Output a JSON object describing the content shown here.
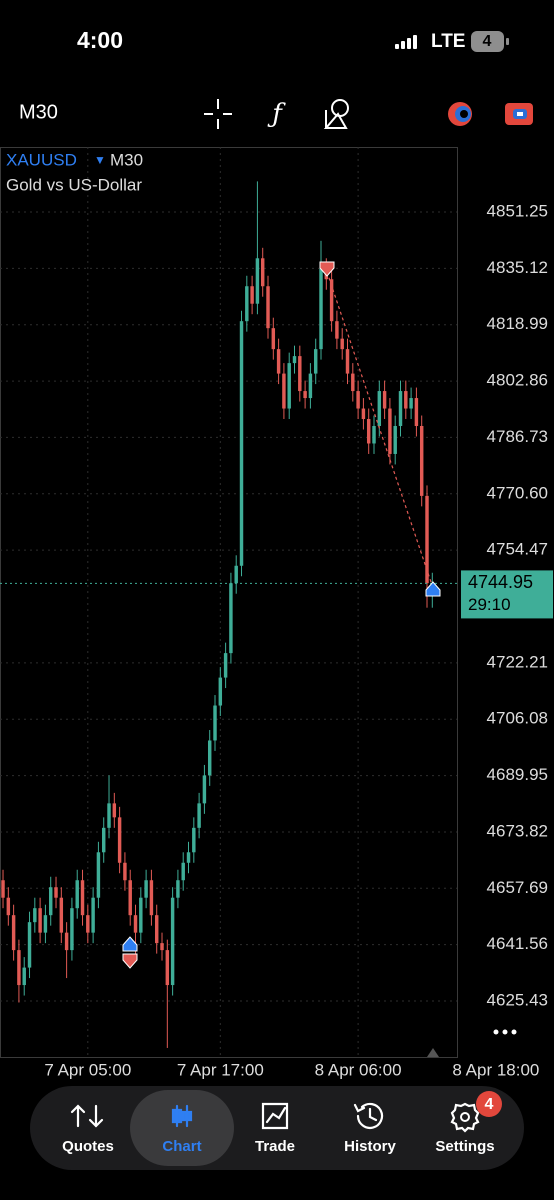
{
  "status_bar": {
    "time": "4:00",
    "network": "LTE",
    "battery": "4"
  },
  "toolbar": {
    "timeframe": "M30"
  },
  "symbol": {
    "name": "XAUUSD",
    "timeframe": "M30",
    "description": "Gold vs US-Dollar"
  },
  "price_box": {
    "timer": "29:10"
  },
  "chart_data": {
    "type": "candlestick",
    "categories": [
      null,
      null,
      null,
      null,
      null,
      null,
      null,
      null,
      null,
      null,
      null,
      null,
      null,
      null,
      null,
      null,
      null,
      null,
      null,
      null,
      null,
      null,
      null,
      null,
      null,
      null,
      null,
      null,
      null,
      null,
      null,
      null,
      null,
      null,
      null,
      null,
      null,
      null,
      null,
      null,
      null,
      null,
      null,
      null,
      null,
      null,
      null,
      null,
      null,
      null,
      null,
      null,
      null,
      null,
      null,
      null,
      null,
      null,
      null,
      null,
      null,
      null,
      null,
      null,
      null,
      null,
      null,
      null,
      null,
      null,
      null,
      null,
      null,
      null,
      null,
      null,
      null,
      null,
      null,
      null,
      null,
      null
    ],
    "open": [
      4660,
      4655,
      4650,
      4640,
      4630,
      4635,
      4648,
      4652,
      4645,
      4650,
      4658,
      4655,
      4645,
      4640,
      4652,
      4660,
      4650,
      4645,
      4655,
      4668,
      4675,
      4682,
      4678,
      4665,
      4660,
      4650,
      4645,
      4655,
      4660,
      4650,
      4642,
      4640,
      4630,
      4655,
      4660,
      4665,
      4668,
      4675,
      4682,
      4690,
      4700,
      4710,
      4718,
      4725,
      4745,
      4750,
      4820,
      4830,
      4825,
      4838,
      4830,
      4818,
      4812,
      4805,
      4795,
      4808,
      4810,
      4800,
      4798,
      4805,
      4812,
      4835,
      4832,
      4820,
      4815,
      4812,
      4805,
      4800,
      4795,
      4792,
      4785,
      4790,
      4800,
      4795,
      4782,
      4790,
      4800,
      4795,
      4798,
      4790,
      4770,
      4742
    ],
    "high": [
      4663,
      4658,
      4653,
      4643,
      4638,
      4651,
      4655,
      4655,
      4653,
      4661,
      4661,
      4658,
      4648,
      4655,
      4663,
      4663,
      4653,
      4658,
      4671,
      4678,
      4690,
      4685,
      4681,
      4668,
      4663,
      4653,
      4658,
      4663,
      4663,
      4653,
      4645,
      4643,
      4658,
      4663,
      4668,
      4671,
      4678,
      4685,
      4693,
      4703,
      4713,
      4721,
      4728,
      4748,
      4753,
      4823,
      4833,
      4833,
      4860,
      4841,
      4833,
      4821,
      4815,
      4808,
      4811,
      4813,
      4813,
      4803,
      4808,
      4815,
      4843,
      4838,
      4835,
      4823,
      4818,
      4815,
      4808,
      4803,
      4798,
      4795,
      4793,
      4803,
      4803,
      4798,
      4793,
      4803,
      4803,
      4801,
      4801,
      4793,
      4773,
      4748
    ],
    "low": [
      4652,
      4647,
      4637,
      4625,
      4627,
      4632,
      4645,
      4642,
      4642,
      4647,
      4652,
      4642,
      4632,
      4637,
      4649,
      4647,
      4642,
      4642,
      4652,
      4665,
      4672,
      4675,
      4662,
      4657,
      4647,
      4638,
      4642,
      4652,
      4647,
      4639,
      4637,
      4612,
      4627,
      4652,
      4657,
      4662,
      4665,
      4672,
      4679,
      4687,
      4697,
      4707,
      4715,
      4722,
      4742,
      4747,
      4817,
      4822,
      4822,
      4827,
      4815,
      4809,
      4802,
      4792,
      4792,
      4805,
      4797,
      4795,
      4795,
      4802,
      4809,
      4829,
      4817,
      4812,
      4809,
      4802,
      4797,
      4792,
      4789,
      4782,
      4782,
      4787,
      4792,
      4779,
      4779,
      4787,
      4792,
      4792,
      4787,
      4767,
      4738,
      4738
    ],
    "close": [
      4655,
      4650,
      4640,
      4630,
      4635,
      4648,
      4652,
      4645,
      4650,
      4658,
      4655,
      4645,
      4640,
      4652,
      4660,
      4650,
      4645,
      4655,
      4668,
      4675,
      4682,
      4678,
      4665,
      4660,
      4650,
      4645,
      4655,
      4660,
      4650,
      4642,
      4640,
      4630,
      4655,
      4660,
      4665,
      4668,
      4675,
      4682,
      4690,
      4700,
      4710,
      4718,
      4725,
      4745,
      4750,
      4820,
      4830,
      4825,
      4838,
      4830,
      4818,
      4812,
      4805,
      4795,
      4808,
      4810,
      4800,
      4798,
      4805,
      4812,
      4835,
      4832,
      4820,
      4815,
      4812,
      4805,
      4800,
      4795,
      4792,
      4785,
      4790,
      4800,
      4795,
      4782,
      4790,
      4800,
      4795,
      4798,
      4790,
      4770,
      4745,
      4744.95
    ],
    "up_color": "#3fae98",
    "down_color": "#e25b55",
    "xlim": [
      -0.57,
      85.66
    ],
    "xticks": [
      {
        "value": 16,
        "label": "7 Apr 05:00"
      },
      {
        "value": 41,
        "label": "7 Apr 17:00"
      },
      {
        "value": 67,
        "label": "8 Apr 06:00"
      },
      {
        "value": 93,
        "label": "8 Apr 18:00"
      }
    ],
    "ylim": [
      4609.41,
      4869.85
    ],
    "yticks": [
      4851.25,
      4835.12,
      4818.99,
      4802.86,
      4786.73,
      {
        "value": 4770.6,
        "label": "4770.60"
      },
      4754.47,
      4722.21,
      4706.08,
      4689.95,
      4673.82,
      4657.69,
      4641.56,
      4625.43
    ],
    "grid": true
  },
  "tab_bar": {
    "tabs": [
      "Quotes",
      "Chart",
      "Trade",
      "History",
      "Settings"
    ],
    "active": 1,
    "settings_badge": "4"
  }
}
